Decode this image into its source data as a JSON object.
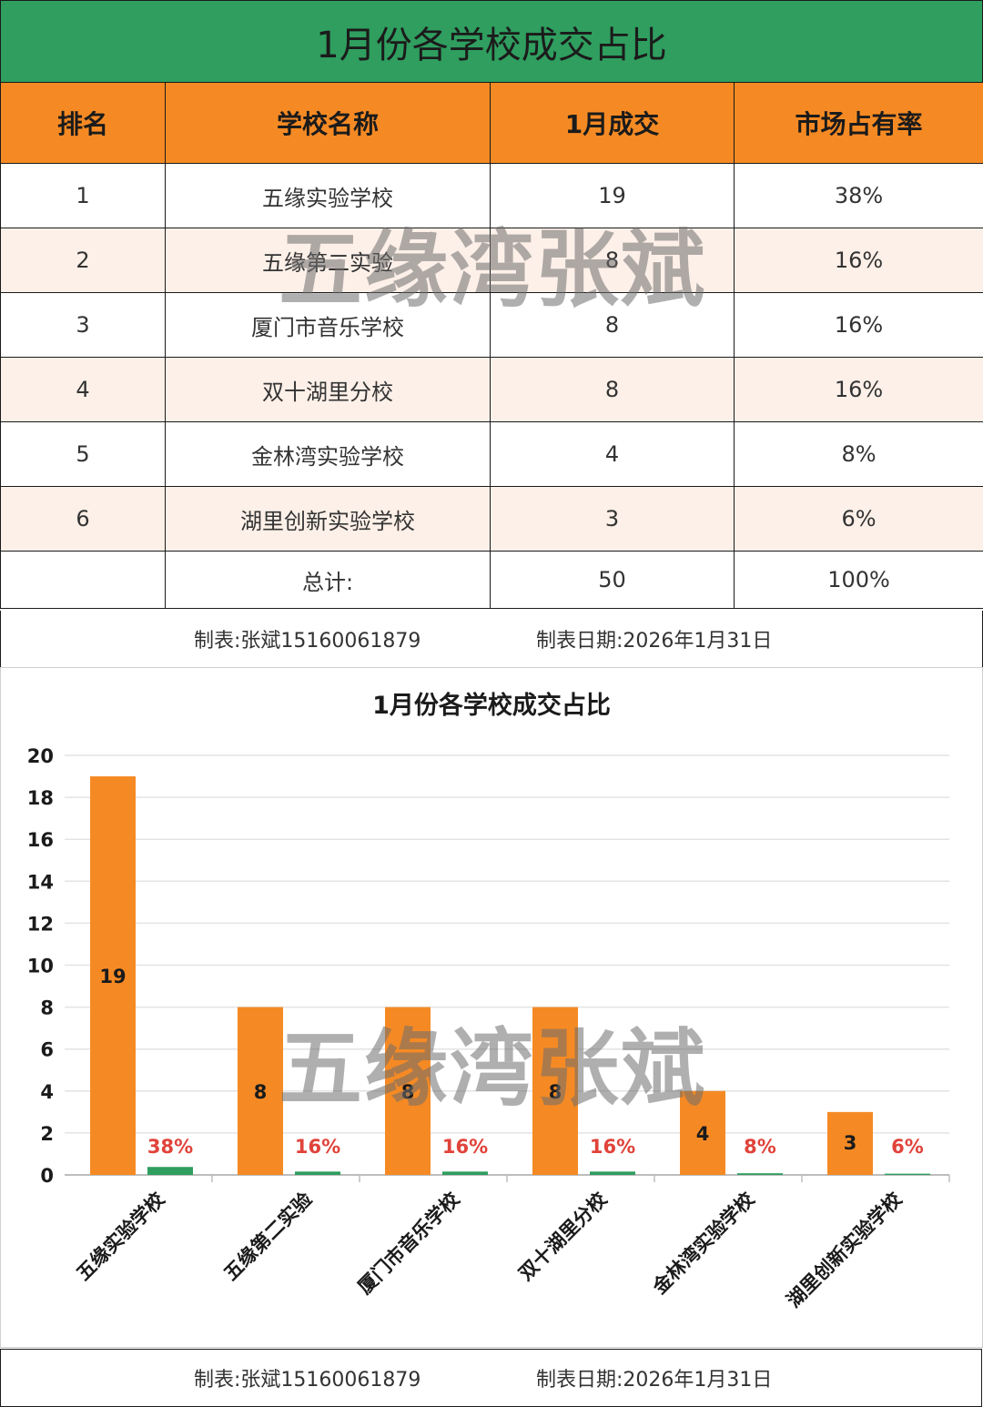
{
  "title": "1月份各学校成交占比",
  "table": {
    "headers": [
      "排名",
      "学校名称",
      "1月成交",
      "市场占有率"
    ],
    "rows": [
      {
        "rank": "1",
        "school": "五缘实验学校",
        "deals": "19",
        "share": "38%"
      },
      {
        "rank": "2",
        "school": "五缘第二实验",
        "deals": "8",
        "share": "16%"
      },
      {
        "rank": "3",
        "school": "厦门市音乐学校",
        "deals": "8",
        "share": "16%"
      },
      {
        "rank": "4",
        "school": "双十湖里分校",
        "deals": "8",
        "share": "16%"
      },
      {
        "rank": "5",
        "school": "金林湾实验学校",
        "deals": "4",
        "share": "8%"
      },
      {
        "rank": "6",
        "school": "湖里创新实验学校",
        "deals": "3",
        "share": "6%"
      }
    ],
    "total": {
      "label": "总计:",
      "deals": "50",
      "share": "100%"
    }
  },
  "footer": {
    "maker": "制表:张斌15160061879",
    "date": "制表日期:2026年1月31日"
  },
  "watermark": "五缘湾张斌",
  "chart_data": {
    "type": "bar",
    "title": "1月份各学校成交占比",
    "categories": [
      "五缘实验学校",
      "五缘第二实验",
      "厦门市音乐学校",
      "双十湖里分校",
      "金林湾实验学校",
      "湖里创新实验学校"
    ],
    "series": [
      {
        "values": [
          19,
          8,
          8,
          8,
          4,
          3
        ],
        "labels": [
          "19",
          "8",
          "8",
          "8",
          "4",
          "3"
        ],
        "color": "#f58a24"
      },
      {
        "values": [
          0.38,
          0.16,
          0.16,
          0.16,
          0.08,
          0.06
        ],
        "labels": [
          "38%",
          "16%",
          "16%",
          "16%",
          "8%",
          "6%"
        ],
        "color": "#2f9e5f"
      }
    ],
    "ylim": [
      0,
      20
    ],
    "yticks": [
      "0",
      "2",
      "4",
      "6",
      "8",
      "10",
      "12",
      "14",
      "16",
      "18",
      "20"
    ],
    "grid": true,
    "label_color": "#e0433a"
  }
}
